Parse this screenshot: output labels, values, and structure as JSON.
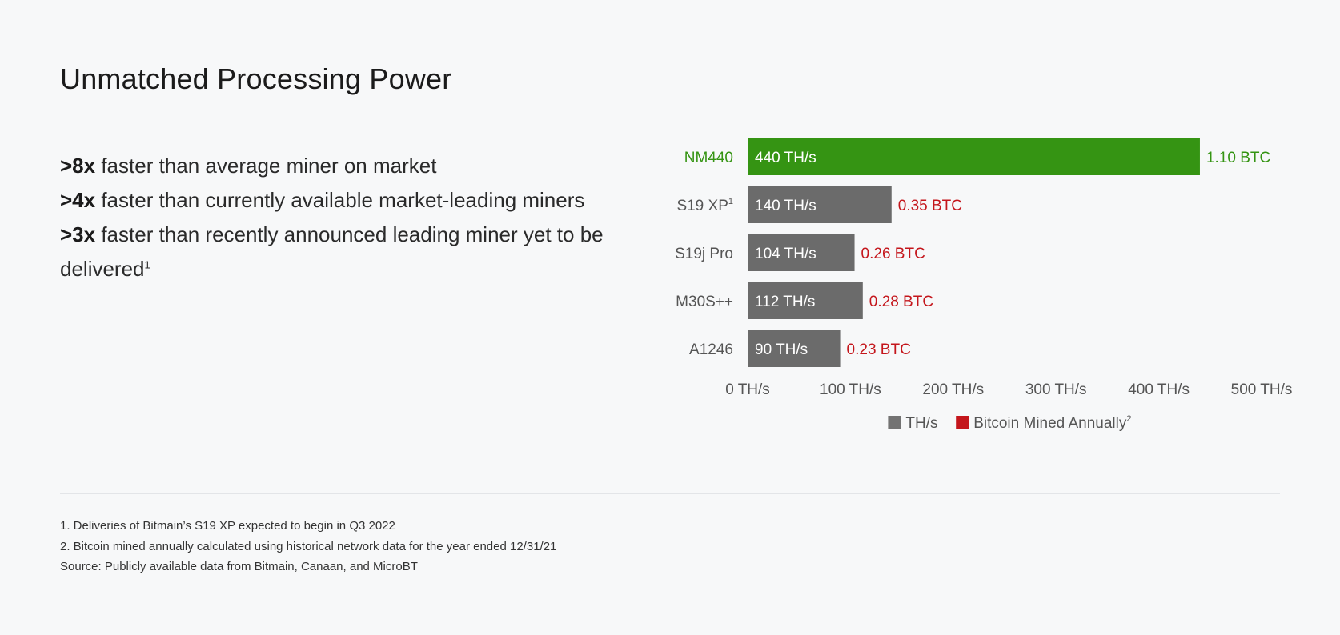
{
  "page": {
    "title": "Unmatched Processing Power"
  },
  "bullets": [
    {
      "strong": ">8x",
      "text": " faster than average miner on market",
      "sup": ""
    },
    {
      "strong": ">4x",
      "text": " faster than currently available market-leading miners",
      "sup": ""
    },
    {
      "strong": ">3x",
      "text": " faster than recently announced leading miner yet to be",
      "sup": ""
    },
    {
      "strong": "",
      "text": "delivered",
      "sup": "1"
    }
  ],
  "chart_data": {
    "type": "bar",
    "orientation": "horizontal",
    "categories": [
      "NM440",
      "S19 XP",
      "S19j Pro",
      "M30S++",
      "A1246"
    ],
    "category_superscripts": [
      "",
      "1",
      "",
      "",
      ""
    ],
    "series": [
      {
        "name": "TH/s",
        "values": [
          440,
          140,
          104,
          112,
          90
        ],
        "data_labels": [
          "440 TH/s",
          "140 TH/s",
          "104 TH/s",
          "112 TH/s",
          "90 TH/s"
        ]
      },
      {
        "name": "Bitcoin Mined Annually",
        "values": [
          1.1,
          0.35,
          0.26,
          0.28,
          0.23
        ],
        "data_labels": [
          "1.10 BTC",
          "0.35 BTC",
          "0.26 BTC",
          "0.28 BTC",
          "0.23 BTC"
        ]
      }
    ],
    "highlight_category": "NM440",
    "xlim": [
      0,
      500
    ],
    "xticks": [
      0,
      100,
      200,
      300,
      400,
      500
    ],
    "xtick_labels": [
      "0 TH/s",
      "100 TH/s",
      "200 TH/s",
      "300 TH/s",
      "400 TH/s",
      "500 TH/s"
    ],
    "legend": {
      "placement": "bottom-center",
      "items": [
        {
          "label": "TH/s",
          "sup": "",
          "color": "#737373"
        },
        {
          "label": "Bitcoin Mined Annually",
          "sup": "2",
          "color": "#c4161c"
        }
      ]
    },
    "colors": {
      "bar_default": "#6b6b6b",
      "bar_highlight": "#359413",
      "btc_label": "#c4161c",
      "btc_label_highlight": "#359413",
      "category_label": "#555555",
      "category_label_highlight": "#359413",
      "bar_text": "#ffffff",
      "tick_label": "#555555"
    },
    "grid": false
  },
  "footnotes": [
    "1. Deliveries of Bitmain’s S19 XP expected to begin in Q3 2022",
    "2. Bitcoin mined annually calculated using historical network data for the year ended 12/31/21",
    "Source: Publicly available data from Bitmain, Canaan, and MicroBT"
  ]
}
